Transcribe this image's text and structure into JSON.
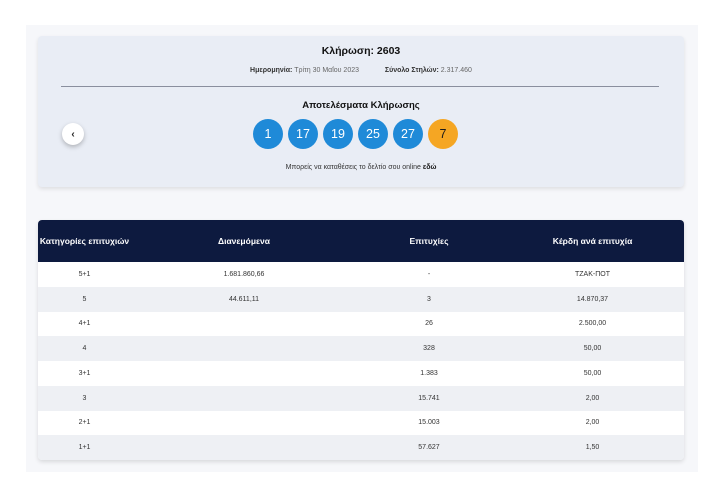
{
  "draw": {
    "title": "Κλήρωση: 2603",
    "date_label": "Ημερομηνία:",
    "date_value": "Τρίτη 30 Μαΐου 2023",
    "columns_label": "Σύνολο Στηλών:",
    "columns_value": "2.317.460",
    "results_title": "Αποτελέσματα Κλήρωσης",
    "prev_icon": "chevron-left-icon",
    "numbers": [
      "1",
      "17",
      "19",
      "25",
      "27"
    ],
    "joker": "7",
    "submit_text": "Μπορείς να καταθέσεις το δελτίο σου online",
    "submit_link": "εδώ"
  },
  "colors": {
    "ball": "#1f8ad8",
    "joker": "#f5a623",
    "table_header": "#0d1a3f",
    "card_bg": "#e9edf5"
  },
  "table": {
    "headers": [
      "Κατηγορίες επιτυχιών",
      "Διανεμόμενα",
      "Επιτυχίες",
      "Κέρδη ανά επιτυχία"
    ],
    "rows": [
      [
        "5+1",
        "1.681.860,66",
        "-",
        "ΤΖΑΚ-ΠΟΤ"
      ],
      [
        "5",
        "44.611,11",
        "3",
        "14.870,37"
      ],
      [
        "4+1",
        "",
        "26",
        "2.500,00"
      ],
      [
        "4",
        "",
        "328",
        "50,00"
      ],
      [
        "3+1",
        "",
        "1.383",
        "50,00"
      ],
      [
        "3",
        "",
        "15.741",
        "2,00"
      ],
      [
        "2+1",
        "",
        "15.003",
        "2,00"
      ],
      [
        "1+1",
        "",
        "57.627",
        "1,50"
      ]
    ]
  }
}
